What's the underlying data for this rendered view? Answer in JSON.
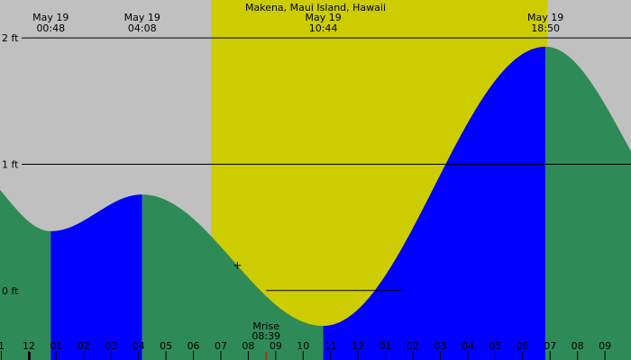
{
  "chart_data": {
    "type": "area",
    "title": "Makena, Maui Island, Hawaii",
    "y_unit": "ft",
    "ylim": [
      -0.55,
      2.3
    ],
    "y_ticks": [
      {
        "value": 0,
        "label": "0 ft"
      },
      {
        "value": 1,
        "label": "1 ft"
      },
      {
        "value": 2,
        "label": "2 ft"
      }
    ],
    "x_range_hours": [
      -1.05,
      21.95
    ],
    "x_ticks": [
      {
        "hour": -1,
        "label": "1"
      },
      {
        "hour": 0,
        "label": "12"
      },
      {
        "hour": 1,
        "label": "01"
      },
      {
        "hour": 2,
        "label": "02"
      },
      {
        "hour": 3,
        "label": "03"
      },
      {
        "hour": 4,
        "label": "04"
      },
      {
        "hour": 5,
        "label": "05"
      },
      {
        "hour": 6,
        "label": "06"
      },
      {
        "hour": 7,
        "label": "07"
      },
      {
        "hour": 8,
        "label": "08"
      },
      {
        "hour": 9,
        "label": "09"
      },
      {
        "hour": 10,
        "label": "10"
      },
      {
        "hour": 11,
        "label": "11"
      },
      {
        "hour": 12,
        "label": "12"
      },
      {
        "hour": 13,
        "label": "01"
      },
      {
        "hour": 14,
        "label": "02"
      },
      {
        "hour": 15,
        "label": "03"
      },
      {
        "hour": 16,
        "label": "04"
      },
      {
        "hour": 17,
        "label": "05"
      },
      {
        "hour": 18,
        "label": "06"
      },
      {
        "hour": 19,
        "label": "07"
      },
      {
        "hour": 20,
        "label": "08"
      },
      {
        "hour": 21,
        "label": "09"
      }
    ],
    "tide_extremes": [
      {
        "hour": -2.5,
        "height": 1.02
      },
      {
        "hour": 0.8,
        "height": 0.47,
        "date": "May 19",
        "time": "00:48",
        "type": "low"
      },
      {
        "hour": 4.133,
        "height": 0.76,
        "date": "May 19",
        "time": "04:08",
        "type": "high"
      },
      {
        "hour": 10.733,
        "height": -0.28,
        "date": "May 19",
        "time": "10:44",
        "type": "low"
      },
      {
        "hour": 18.833,
        "height": 1.93,
        "date": "May 19",
        "time": "18:50",
        "type": "high"
      },
      {
        "hour": 24.5,
        "height": 0.5
      }
    ],
    "daylight": {
      "start_hour": 6.65,
      "end_hour": 18.9
    },
    "moon_reference": {
      "height": 0,
      "start_hour": 8.65,
      "end_hour": 13.6
    },
    "moonrise": {
      "label": "Mrise",
      "time": "08:39",
      "hour": 8.65
    },
    "current_marker": {
      "hour": 7.6,
      "height": 0.5
    },
    "colors": {
      "night": "#c0c0c0",
      "day": "#cccc00",
      "falling": "#2e8b57",
      "rising": "#0000ff",
      "moonrise_tick": "#cc0000"
    }
  }
}
